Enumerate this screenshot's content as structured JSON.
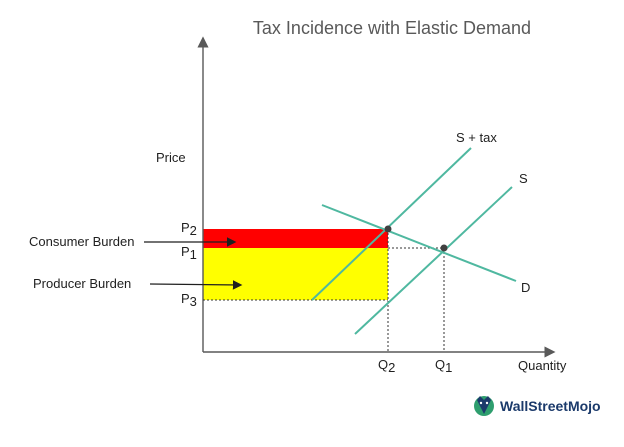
{
  "title": "Tax Incidence with Elastic Demand",
  "axes": {
    "y_label": "Price",
    "x_label": "Quantity"
  },
  "price_labels": {
    "p2": {
      "base": "P",
      "sub": "2"
    },
    "p1": {
      "base": "P",
      "sub": "1"
    },
    "p3": {
      "base": "P",
      "sub": "3"
    }
  },
  "quantity_labels": {
    "q2": {
      "base": "Q",
      "sub": "2"
    },
    "q1": {
      "base": "Q",
      "sub": "1"
    }
  },
  "curves": {
    "supply_tax": "S + tax",
    "supply": "S",
    "demand": "D"
  },
  "burdens": {
    "consumer": "Consumer Burden",
    "producer": "Producer Burden"
  },
  "colors": {
    "consumer_area": "#ff0000",
    "producer_area": "#ffff00",
    "curve": "#4fb8a0",
    "axis": "#595959"
  },
  "logo": {
    "text": "WallStreetMojo",
    "icon": "wallstreetmojo-bull-icon"
  }
}
